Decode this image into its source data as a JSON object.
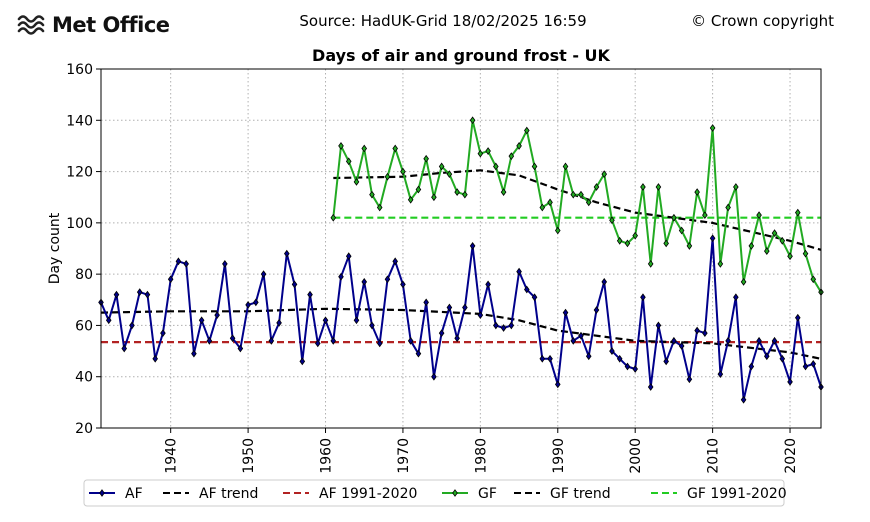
{
  "header": {
    "logo_text": "Met Office",
    "source": "Source: HadUK-Grid 18/02/2025 16:59",
    "copyright": "© Crown copyright"
  },
  "chart_data": {
    "type": "line",
    "title": "Days of air and ground frost - UK",
    "xlabel": "",
    "ylabel": "Day count",
    "xlim": [
      1931,
      2024
    ],
    "ylim": [
      20,
      160
    ],
    "xticks": [
      1940,
      1950,
      1960,
      1970,
      1980,
      1990,
      2000,
      2010,
      2020
    ],
    "yticks": [
      20,
      40,
      60,
      80,
      100,
      120,
      140,
      160
    ],
    "grid": true,
    "legend_position": "bottom",
    "series": [
      {
        "name": "AF",
        "color": "#00008b",
        "marker": "diamond",
        "x": [
          1931,
          1932,
          1933,
          1934,
          1935,
          1936,
          1937,
          1938,
          1939,
          1940,
          1941,
          1942,
          1943,
          1944,
          1945,
          1946,
          1947,
          1948,
          1949,
          1950,
          1951,
          1952,
          1953,
          1954,
          1955,
          1956,
          1957,
          1958,
          1959,
          1960,
          1961,
          1962,
          1963,
          1964,
          1965,
          1966,
          1967,
          1968,
          1969,
          1970,
          1971,
          1972,
          1973,
          1974,
          1975,
          1976,
          1977,
          1978,
          1979,
          1980,
          1981,
          1982,
          1983,
          1984,
          1985,
          1986,
          1987,
          1988,
          1989,
          1990,
          1991,
          1992,
          1993,
          1994,
          1995,
          1996,
          1997,
          1998,
          1999,
          2000,
          2001,
          2002,
          2003,
          2004,
          2005,
          2006,
          2007,
          2008,
          2009,
          2010,
          2011,
          2012,
          2013,
          2014,
          2015,
          2016,
          2017,
          2018,
          2019,
          2020,
          2021,
          2022,
          2023,
          2024
        ],
        "values": [
          69,
          62,
          72,
          51,
          60,
          73,
          72,
          47,
          57,
          78,
          85,
          84,
          49,
          62,
          54,
          64,
          84,
          55,
          51,
          68,
          69,
          80,
          54,
          61,
          88,
          76,
          46,
          72,
          53,
          62,
          54,
          79,
          87,
          62,
          77,
          60,
          53,
          78,
          85,
          76,
          54,
          49,
          69,
          40,
          57,
          67,
          55,
          67,
          91,
          64,
          76,
          60,
          59,
          60,
          81,
          74,
          71,
          47,
          47,
          37,
          65,
          54,
          56,
          48,
          66,
          77,
          50,
          47,
          44,
          43,
          71,
          36,
          60,
          46,
          54,
          52,
          39,
          58,
          57,
          94,
          41,
          54,
          71,
          31,
          44,
          54,
          48,
          54,
          47,
          38,
          63,
          44,
          45,
          36
        ]
      },
      {
        "name": "AF trend",
        "color": "#000000",
        "dash": "dashed",
        "x": [
          1931,
          1940,
          1950,
          1960,
          1970,
          1980,
          1985,
          1990,
          2000,
          2010,
          2020,
          2024
        ],
        "values": [
          65,
          65.5,
          65.5,
          66.5,
          66,
          64.5,
          62,
          58,
          54,
          53,
          49.5,
          47
        ]
      },
      {
        "name": "AF 1991-2020",
        "color": "#b22222",
        "dash": "dashed",
        "x": [
          1931,
          2024
        ],
        "values": [
          53.5,
          53.5
        ]
      },
      {
        "name": "GF",
        "color": "#22aa22",
        "marker": "diamond",
        "x": [
          1961,
          1962,
          1963,
          1964,
          1965,
          1966,
          1967,
          1968,
          1969,
          1970,
          1971,
          1972,
          1973,
          1974,
          1975,
          1976,
          1977,
          1978,
          1979,
          1980,
          1981,
          1982,
          1983,
          1984,
          1985,
          1986,
          1987,
          1988,
          1989,
          1990,
          1991,
          1992,
          1993,
          1994,
          1995,
          1996,
          1997,
          1998,
          1999,
          2000,
          2001,
          2002,
          2003,
          2004,
          2005,
          2006,
          2007,
          2008,
          2009,
          2010,
          2011,
          2012,
          2013,
          2014,
          2015,
          2016,
          2017,
          2018,
          2019,
          2020,
          2021,
          2022,
          2023,
          2024
        ],
        "values": [
          102,
          130,
          124,
          116,
          129,
          111,
          106,
          118,
          129,
          120,
          109,
          113,
          125,
          110,
          122,
          119,
          112,
          111,
          140,
          127,
          128,
          122,
          112,
          126,
          130,
          136,
          122,
          106,
          108,
          97,
          122,
          111,
          111,
          108,
          114,
          119,
          101,
          93,
          92,
          95,
          114,
          84,
          114,
          92,
          102,
          97,
          91,
          112,
          103,
          137,
          84,
          106,
          114,
          77,
          91,
          103,
          89,
          96,
          93,
          87,
          104,
          88,
          78,
          73
        ]
      },
      {
        "name": "GF trend",
        "color": "#000000",
        "dash": "dashed",
        "x": [
          1961,
          1970,
          1975,
          1980,
          1985,
          1990,
          1995,
          2000,
          2010,
          2020,
          2024
        ],
        "values": [
          117.5,
          118,
          119.5,
          120.5,
          118.5,
          113,
          108,
          104,
          100,
          93,
          89.5
        ]
      },
      {
        "name": "GF 1991-2020",
        "color": "#22cc22",
        "dash": "dashed",
        "x": [
          1961,
          2024
        ],
        "values": [
          102,
          102
        ]
      }
    ]
  }
}
